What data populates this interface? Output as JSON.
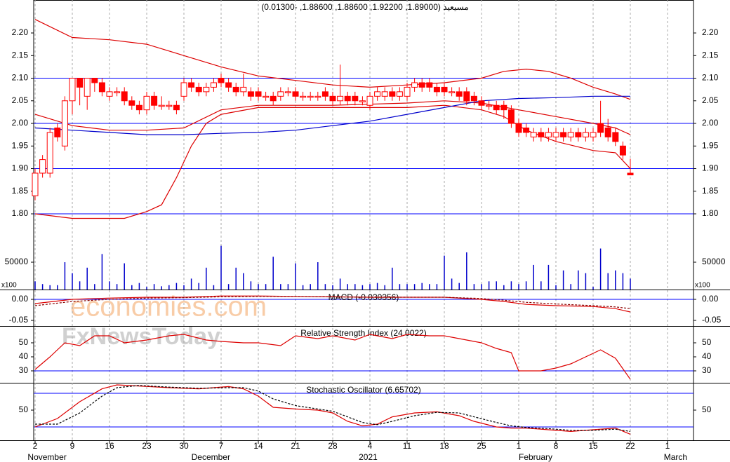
{
  "chart_data": [
    {
      "type": "candlestick",
      "title": "مسيعيد (1.89000, 1.92200, 1.88600, 1.88600, -0.01300)",
      "color": "#ff0000",
      "open": [
        1.84,
        1.89,
        1.89,
        1.99,
        1.95,
        2.05,
        2.1,
        2.06,
        2.1,
        2.09,
        2.06,
        2.07,
        2.07,
        2.05,
        2.04,
        2.03,
        2.06,
        2.04,
        2.04,
        2.04,
        2.06,
        2.09,
        2.08,
        2.07,
        2.08,
        2.1,
        2.09,
        2.08,
        2.07,
        2.07,
        2.07,
        2.06,
        2.06,
        2.06,
        2.07,
        2.07,
        2.06,
        2.06,
        2.06,
        2.07,
        2.06,
        2.05,
        2.06,
        2.06,
        2.05,
        2.04,
        2.06,
        2.06,
        2.07,
        2.06,
        2.06,
        2.08,
        2.09,
        2.09,
        2.08,
        2.08,
        2.07,
        2.07,
        2.07,
        2.06,
        2.05,
        2.04,
        2.04,
        2.04,
        2.03,
        2.0,
        1.99,
        1.97,
        1.98,
        1.97,
        1.97,
        1.98,
        1.97,
        1.98,
        1.97,
        1.97,
        2.0,
        1.99,
        1.98,
        1.95,
        1.89
      ],
      "high": [
        1.9,
        1.93,
        1.99,
        2.0,
        2.06,
        2.1,
        2.1,
        2.1,
        2.1,
        2.1,
        2.08,
        2.08,
        2.08,
        2.06,
        2.05,
        2.07,
        2.07,
        2.06,
        2.05,
        2.05,
        2.1,
        2.1,
        2.09,
        2.09,
        2.1,
        2.11,
        2.1,
        2.09,
        2.11,
        2.08,
        2.08,
        2.07,
        2.07,
        2.08,
        2.08,
        2.08,
        2.07,
        2.07,
        2.07,
        2.08,
        2.07,
        2.13,
        2.07,
        2.07,
        2.06,
        2.07,
        2.08,
        2.08,
        2.08,
        2.08,
        2.09,
        2.1,
        2.1,
        2.1,
        2.09,
        2.09,
        2.08,
        2.08,
        2.08,
        2.07,
        2.06,
        2.05,
        2.05,
        2.05,
        2.04,
        2.01,
        2.0,
        1.99,
        1.99,
        1.99,
        1.99,
        1.99,
        1.99,
        1.99,
        1.99,
        1.99,
        2.05,
        2.01,
        1.99,
        1.96,
        1.922
      ],
      "low": [
        1.83,
        1.88,
        1.88,
        1.96,
        1.94,
        2.02,
        2.04,
        2.03,
        2.07,
        2.06,
        2.05,
        2.06,
        2.04,
        2.03,
        2.02,
        2.02,
        2.03,
        2.03,
        2.03,
        2.02,
        2.05,
        2.07,
        2.06,
        2.06,
        2.07,
        2.08,
        2.07,
        2.06,
        2.06,
        2.05,
        2.05,
        2.05,
        2.04,
        2.05,
        2.06,
        2.05,
        2.05,
        2.05,
        2.05,
        2.05,
        2.04,
        2.04,
        2.04,
        2.04,
        2.04,
        2.03,
        2.05,
        2.05,
        2.05,
        2.05,
        2.05,
        2.07,
        2.07,
        2.07,
        2.06,
        2.06,
        2.06,
        2.05,
        2.04,
        2.04,
        2.03,
        2.03,
        2.02,
        2.01,
        1.99,
        1.97,
        1.97,
        1.96,
        1.96,
        1.96,
        1.96,
        1.96,
        1.96,
        1.96,
        1.96,
        1.96,
        1.97,
        1.96,
        1.95,
        1.92,
        1.886
      ],
      "close": [
        1.89,
        1.92,
        1.98,
        1.97,
        2.05,
        2.1,
        2.08,
        2.1,
        2.09,
        2.07,
        2.07,
        2.07,
        2.05,
        2.04,
        2.03,
        2.06,
        2.04,
        2.04,
        2.04,
        2.03,
        2.09,
        2.08,
        2.07,
        2.08,
        2.09,
        2.09,
        2.08,
        2.07,
        2.08,
        2.06,
        2.06,
        2.06,
        2.05,
        2.07,
        2.07,
        2.06,
        2.06,
        2.06,
        2.06,
        2.06,
        2.05,
        2.06,
        2.05,
        2.05,
        2.05,
        2.06,
        2.07,
        2.07,
        2.06,
        2.07,
        2.08,
        2.09,
        2.08,
        2.08,
        2.07,
        2.07,
        2.07,
        2.06,
        2.05,
        2.05,
        2.04,
        2.04,
        2.03,
        2.03,
        2.0,
        1.98,
        1.98,
        1.98,
        1.97,
        1.98,
        1.98,
        1.97,
        1.98,
        1.97,
        1.98,
        1.98,
        1.98,
        1.97,
        1.96,
        1.93,
        1.886
      ],
      "overlays": [
        {
          "color": "#dd0000",
          "x": [
            0,
            5,
            10,
            15,
            20,
            25,
            30,
            35,
            40,
            45,
            50,
            55,
            60,
            63,
            66,
            69,
            72,
            75,
            78,
            80
          ],
          "values": [
            2.23,
            2.19,
            2.185,
            2.175,
            2.15,
            2.125,
            2.105,
            2.095,
            2.085,
            2.08,
            2.085,
            2.09,
            2.1,
            2.115,
            2.12,
            2.115,
            2.1,
            2.08,
            2.065,
            2.053
          ]
        },
        {
          "color": "#dd0000",
          "x": [
            0,
            5,
            10,
            15,
            20,
            25,
            30,
            40,
            50,
            55,
            60,
            65,
            70,
            75,
            78,
            80
          ],
          "values": [
            2.02,
            1.995,
            1.985,
            1.985,
            1.99,
            2.03,
            2.04,
            2.04,
            2.045,
            2.05,
            2.045,
            2.03,
            2.015,
            2.0,
            1.99,
            1.975
          ]
        },
        {
          "color": "#dd0000",
          "x": [
            0,
            5,
            10,
            12,
            15,
            17,
            19,
            21,
            23,
            25,
            30,
            40,
            50,
            55,
            60,
            63,
            66,
            70,
            75,
            78,
            80
          ],
          "values": [
            1.8,
            1.79,
            1.79,
            1.79,
            1.805,
            1.82,
            1.88,
            1.95,
            2.0,
            2.02,
            2.035,
            2.035,
            2.035,
            2.04,
            2.03,
            2.015,
            1.985,
            1.96,
            1.94,
            1.935,
            1.9
          ]
        },
        {
          "color": "#0000cc",
          "x": [
            0,
            5,
            10,
            15,
            20,
            25,
            30,
            35,
            40,
            45,
            50,
            55,
            60,
            65,
            70,
            75,
            80
          ],
          "values": [
            1.99,
            1.985,
            1.98,
            1.975,
            1.975,
            1.978,
            1.98,
            1.985,
            1.995,
            2.005,
            2.02,
            2.035,
            2.05,
            2.055,
            2.057,
            2.06,
            2.06
          ]
        }
      ],
      "hlines": [
        1.8,
        1.9,
        2.0,
        2.1
      ],
      "hline_color": "#0000ff",
      "xlim": [
        -0.19,
        88.49
      ],
      "ylim": [
        1.6326,
        2.2729
      ],
      "yticks": [
        {
          "value": 1.8,
          "label": "1.80"
        },
        {
          "value": 1.85,
          "label": "1.85"
        },
        {
          "value": 1.9,
          "label": "1.90"
        },
        {
          "value": 1.95,
          "label": "1.95"
        },
        {
          "value": 2.0,
          "label": "2.00"
        },
        {
          "value": 2.05,
          "label": "2.05"
        },
        {
          "value": 2.1,
          "label": "2.10"
        },
        {
          "value": 2.15,
          "label": "2.15"
        },
        {
          "value": 2.2,
          "label": "2.20"
        }
      ]
    },
    {
      "type": "volume",
      "unit_label": "x100",
      "color": "#0000cc",
      "values": [
        15000,
        10000,
        8000,
        8000,
        50000,
        30000,
        15000,
        40000,
        10000,
        65000,
        15000,
        10000,
        48000,
        8000,
        12000,
        5000,
        10000,
        6000,
        8000,
        12000,
        8000,
        20000,
        12000,
        40000,
        8000,
        80000,
        10000,
        40000,
        30000,
        15000,
        10000,
        10000,
        60000,
        10000,
        10000,
        48000,
        8000,
        10000,
        50000,
        10000,
        8000,
        20000,
        10000,
        10000,
        8000,
        10000,
        12000,
        8000,
        40000,
        10000,
        10000,
        10000,
        12000,
        10000,
        10000,
        62000,
        20000,
        12000,
        68000,
        10000,
        10000,
        15000,
        15000,
        8000,
        15000,
        10000,
        15000,
        45000,
        15000,
        45000,
        8000,
        35000,
        10000,
        35000,
        30000,
        5000,
        75000,
        30000,
        35000,
        30000,
        20000
      ],
      "xlim": [
        -0.19,
        88.49
      ],
      "ylim": [
        0,
        93590
      ],
      "yticks": [
        50000
      ]
    },
    {
      "type": "line",
      "title": "MACD (-0.030356)",
      "hlines": [
        0
      ],
      "hline_color": "#0000ff",
      "series": [
        {
          "color": "#dd0000",
          "dash": false,
          "x": [
            0,
            5,
            10,
            15,
            20,
            25,
            30,
            35,
            40,
            45,
            50,
            55,
            60,
            63,
            66,
            70,
            75,
            78,
            80
          ],
          "values": [
            -0.01,
            0.0,
            0.003,
            0.005,
            0.005,
            0.008,
            0.008,
            0.007,
            0.006,
            0.005,
            0.005,
            0.005,
            0.0,
            -0.005,
            -0.012,
            -0.015,
            -0.017,
            -0.022,
            -0.03
          ]
        },
        {
          "color": "#880000",
          "dash": true,
          "x": [
            0,
            5,
            10,
            15,
            20,
            25,
            30,
            35,
            40,
            45,
            50,
            55,
            60,
            63,
            66,
            70,
            75,
            78,
            80
          ],
          "values": [
            -0.015,
            -0.005,
            0.0,
            0.003,
            0.004,
            0.006,
            0.007,
            0.007,
            0.006,
            0.005,
            0.005,
            0.005,
            0.002,
            -0.002,
            -0.007,
            -0.011,
            -0.015,
            -0.018,
            -0.022
          ]
        }
      ],
      "xlim": [
        -0.19,
        88.49
      ],
      "ylim": [
        -0.0633,
        0.02
      ],
      "yticks": [
        {
          "value": 0,
          "label": "0.00"
        },
        {
          "value": -0.05,
          "label": "-0.05"
        }
      ]
    },
    {
      "type": "line",
      "title": "Relative Strength Index (24.0022)",
      "hlines": [
        30
      ],
      "hline_color": "#0000ff",
      "series": [
        {
          "color": "#dd0000",
          "dash": false,
          "x": [
            0,
            2,
            4,
            6,
            8,
            10,
            12,
            15,
            18,
            20,
            23,
            25,
            28,
            30,
            33,
            35,
            38,
            40,
            43,
            45,
            48,
            50,
            53,
            55,
            57,
            58,
            60,
            62,
            64,
            65,
            68,
            70,
            72,
            74,
            76,
            78,
            80
          ],
          "values": [
            31,
            40,
            50,
            48,
            55,
            55,
            50,
            52,
            55,
            56,
            52,
            51,
            50,
            50,
            48,
            55,
            53,
            55,
            52,
            56,
            53,
            56,
            55,
            55,
            53,
            52,
            50,
            46,
            43,
            30,
            30,
            32,
            35,
            40,
            45,
            39,
            24
          ]
        }
      ],
      "xlim": [
        -0.19,
        88.49
      ],
      "ylim": [
        21.5,
        61.5
      ],
      "yticks": [
        30,
        40,
        50
      ]
    },
    {
      "type": "line",
      "title": "Stochastic Oscillator (6.65702)",
      "hlines": [
        20,
        80
      ],
      "hline_color": "#0000ff",
      "series": [
        {
          "color": "#dd0000",
          "dash": false,
          "x": [
            0,
            3,
            6,
            9,
            11,
            14,
            18,
            22,
            26,
            28,
            30,
            32,
            35,
            38,
            40,
            42,
            44,
            46,
            48,
            51,
            54,
            57,
            59,
            62,
            64,
            66,
            69,
            72,
            75,
            78,
            80
          ],
          "values": [
            20,
            35,
            65,
            88,
            95,
            93,
            90,
            88,
            92,
            88,
            75,
            55,
            52,
            50,
            45,
            30,
            22,
            25,
            38,
            45,
            47,
            40,
            30,
            20,
            18,
            18,
            15,
            12,
            15,
            18,
            7
          ]
        },
        {
          "color": "#000000",
          "dash": true,
          "x": [
            0,
            3,
            6,
            9,
            11,
            14,
            18,
            22,
            26,
            28,
            30,
            32,
            35,
            38,
            40,
            42,
            44,
            46,
            48,
            51,
            54,
            57,
            59,
            62,
            64,
            66,
            69,
            72,
            75,
            78,
            80
          ],
          "values": [
            25,
            25,
            45,
            75,
            90,
            94,
            91,
            89,
            90,
            90,
            84,
            70,
            58,
            52,
            48,
            38,
            28,
            24,
            30,
            40,
            46,
            45,
            38,
            28,
            22,
            19,
            17,
            14,
            14,
            16,
            12
          ]
        }
      ],
      "xlim": [
        -0.19,
        88.49
      ],
      "ylim": [
        -3.75,
        97.5
      ],
      "yticks": [
        50
      ],
      "xticks": [
        {
          "value": 0,
          "label": "2"
        },
        {
          "value": 5,
          "label": "9"
        },
        {
          "value": 10,
          "label": "16"
        },
        {
          "value": 15,
          "label": "23"
        },
        {
          "value": 20,
          "label": "30"
        },
        {
          "value": 25,
          "label": "7"
        },
        {
          "value": 30,
          "label": "14"
        },
        {
          "value": 35,
          "label": "21"
        },
        {
          "value": 40,
          "label": "28"
        },
        {
          "value": 45,
          "label": "4"
        },
        {
          "value": 50,
          "label": "11"
        },
        {
          "value": 55,
          "label": "18"
        },
        {
          "value": 60,
          "label": "25"
        },
        {
          "value": 65,
          "label": "1"
        },
        {
          "value": 70,
          "label": "8"
        },
        {
          "value": 75,
          "label": "15"
        },
        {
          "value": 80,
          "label": "22"
        },
        {
          "value": 85,
          "label": "1"
        }
      ],
      "month_ticks": [
        {
          "value": -1,
          "label": "November"
        },
        {
          "value": 21,
          "label": "December"
        },
        {
          "value": 43.5,
          "label": "2021"
        },
        {
          "value": 65,
          "label": "February"
        },
        {
          "value": 84.5,
          "label": "March"
        }
      ]
    }
  ],
  "watermark": [
    "economies.com",
    "FxNewsToday"
  ]
}
